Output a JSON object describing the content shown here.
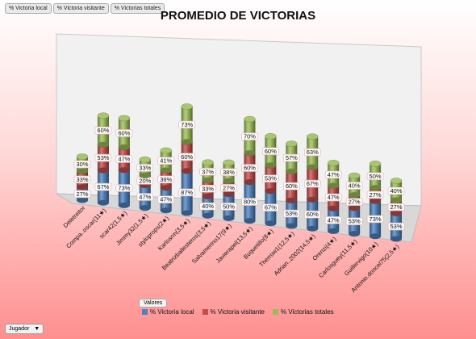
{
  "tabs": [
    "% Victoria local",
    "% Victoria visitante",
    "% Victorias totales"
  ],
  "title": "PROMEDIO DE VICTORIAS",
  "legend_header": "Valores",
  "legend": [
    {
      "label": "% Victoria local",
      "color": "#4f81bd"
    },
    {
      "label": "% Victoria visitante",
      "color": "#c0504d"
    },
    {
      "label": "% Victorias totales",
      "color": "#9bbb59"
    }
  ],
  "bottom_filter": {
    "label": "Jugador",
    "arrow": "▼"
  },
  "chart_data": {
    "type": "bar",
    "stacked": true,
    "title": "PROMEDIO DE VICTORIAS",
    "categories": [
      "Deletreitor",
      "Compa..oscar(11★)",
      "scar42(1,5★)",
      "Jimmy32(1,5★)",
      "styloprops(2★)",
      "Karlosrm(3,5★)",
      "Beatrizballesteros(3,5★)",
      "Salvamerino17(9★)",
      "Javierapel(13,5★)",
      "Buquetillo(8★)",
      "Therrow1(12,5★)",
      "Adrian..2002(14,5★)",
      "Orenzi(4★)",
      "Carlosguey(11,5★)",
      "Guillervigo(10★)",
      "Antonio.doncel75(2,5★)"
    ],
    "series": [
      {
        "name": "% Victoria local",
        "values": [
          27,
          67,
          73,
          47,
          47,
          87,
          40,
          50,
          80,
          67,
          53,
          60,
          47,
          53,
          73,
          53
        ],
        "labels": [
          "27%",
          "67%",
          "73%",
          "47%",
          "47%",
          "87%",
          "40%",
          "50%",
          "80%",
          "67%",
          "53%",
          "60%",
          "47%",
          "53%",
          "73%",
          "53%"
        ]
      },
      {
        "name": "% Victoria visitante",
        "values": [
          33,
          53,
          47,
          20,
          36,
          60,
          33,
          27,
          60,
          53,
          60,
          67,
          47,
          27,
          27,
          27
        ],
        "labels": [
          "33%",
          "53%",
          "47%",
          "20%",
          "36%",
          "60%",
          "33%",
          "27%",
          "60%",
          "53%",
          "60%",
          "67%",
          "47%",
          "27%",
          "27%",
          "27%"
        ]
      },
      {
        "name": "% Victorias totales",
        "values": [
          30,
          60,
          60,
          33,
          41,
          73,
          37,
          38,
          70,
          60,
          57,
          63,
          47,
          40,
          50,
          40
        ],
        "labels": [
          "30%",
          "60%",
          "60%",
          "33%",
          "41%",
          "73%",
          "37%",
          "38%",
          "70%",
          "60%",
          "57%",
          "63%",
          "47%",
          "40%",
          "50%",
          "40%"
        ]
      }
    ],
    "legend_position": "bottom",
    "grid": false
  }
}
